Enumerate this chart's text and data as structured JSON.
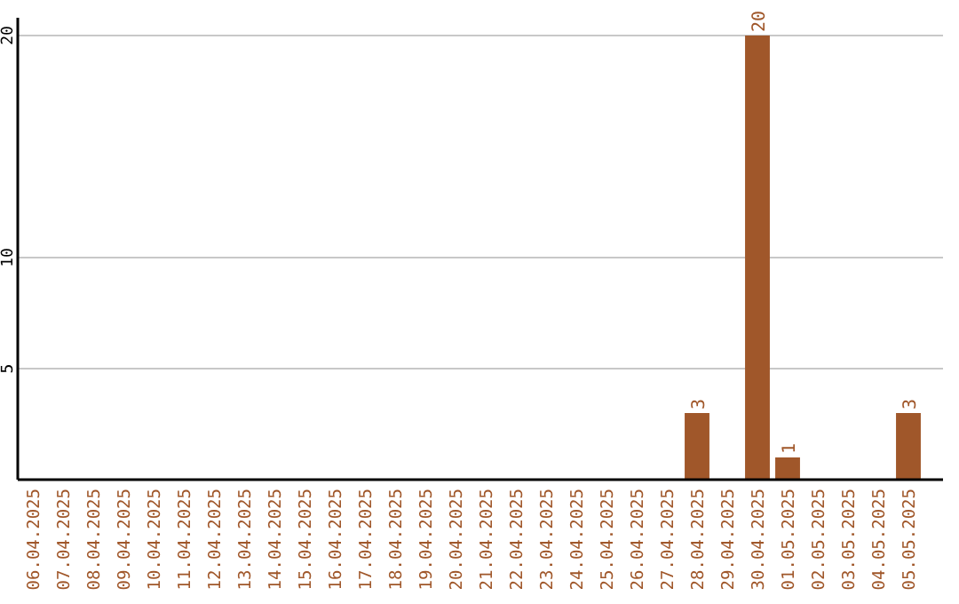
{
  "chart_data": {
    "type": "bar",
    "categories": [
      "06.04.2025",
      "07.04.2025",
      "08.04.2025",
      "09.04.2025",
      "10.04.2025",
      "11.04.2025",
      "12.04.2025",
      "13.04.2025",
      "14.04.2025",
      "15.04.2025",
      "16.04.2025",
      "17.04.2025",
      "18.04.2025",
      "19.04.2025",
      "20.04.2025",
      "21.04.2025",
      "22.04.2025",
      "23.04.2025",
      "24.04.2025",
      "25.04.2025",
      "26.04.2025",
      "27.04.2025",
      "28.04.2025",
      "29.04.2025",
      "30.04.2025",
      "01.05.2025",
      "02.05.2025",
      "03.05.2025",
      "04.05.2025",
      "05.05.2025"
    ],
    "values": [
      0,
      0,
      0,
      0,
      0,
      0,
      0,
      0,
      0,
      0,
      0,
      0,
      0,
      0,
      0,
      0,
      0,
      0,
      0,
      0,
      0,
      0,
      3,
      0,
      20,
      1,
      0,
      0,
      0,
      3
    ],
    "value_labels": [
      null,
      null,
      null,
      null,
      null,
      null,
      null,
      null,
      null,
      null,
      null,
      null,
      null,
      null,
      null,
      null,
      null,
      null,
      null,
      null,
      null,
      null,
      "3",
      null,
      "20",
      "1",
      null,
      null,
      null,
      "3"
    ],
    "color": "#a0572a",
    "ylim": [
      0,
      20.8
    ],
    "yticks": [
      5,
      10,
      20
    ],
    "grid": "y"
  }
}
